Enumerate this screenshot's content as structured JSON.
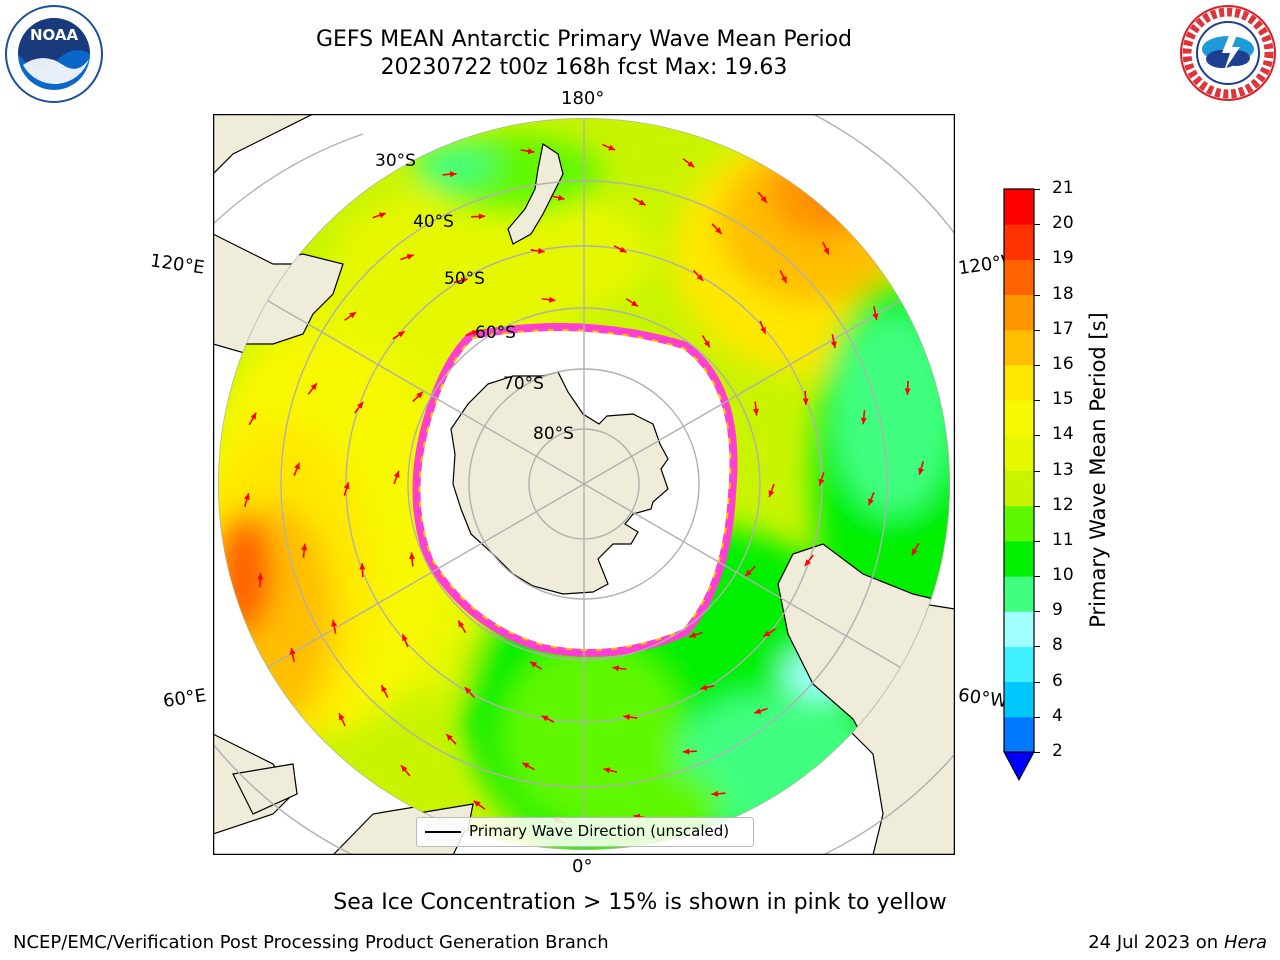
{
  "title": {
    "line1": "GEFS MEAN Antarctic Primary Wave Mean Period",
    "line2": "20230722 t00z 168h fcst   Max: 19.63"
  },
  "map": {
    "longitude_labels": {
      "top": "180°",
      "bottom": "0°",
      "upper_left": "120°E",
      "upper_right": "120°W",
      "lower_left": "60°E",
      "lower_right": "60°W"
    },
    "latitude_labels": [
      "30°S",
      "40°S",
      "50°S",
      "60°S",
      "70°S",
      "80°S"
    ],
    "colors": {
      "land": "#efecd9",
      "ocean_background": "#c8f400",
      "arrows": "#ff0000",
      "sea_ice_edge": "#ff3fd0"
    }
  },
  "legend": {
    "entry": "Primary Wave Direction (unscaled)"
  },
  "colorbar": {
    "label": "Primary Wave Mean Period [s]",
    "ticks": [
      "2",
      "4",
      "6",
      "8",
      "9",
      "10",
      "11",
      "12",
      "13",
      "14",
      "15",
      "16",
      "17",
      "18",
      "19",
      "20",
      "21"
    ],
    "colors": [
      "#0078ff",
      "#00c8ff",
      "#40f0ff",
      "#a0ffff",
      "#40ff80",
      "#00f000",
      "#60f800",
      "#c8f400",
      "#e6f800",
      "#f8f800",
      "#ffe800",
      "#ffbe00",
      "#ff9600",
      "#ff6400",
      "#ff3200",
      "#ff0000"
    ],
    "extend_color": "#0000ff"
  },
  "footnote": "Sea Ice Concentration > 15% is shown in pink to yellow",
  "credit": {
    "left": "NCEP/EMC/Verification Post Processing Product Generation Branch",
    "right_prefix": "24 Jul 2023 on ",
    "right_host": "Hera"
  },
  "logos": {
    "noaa_text": "NOAA",
    "nws_ring_text": "NATIONAL WEATHER SERVICE"
  }
}
